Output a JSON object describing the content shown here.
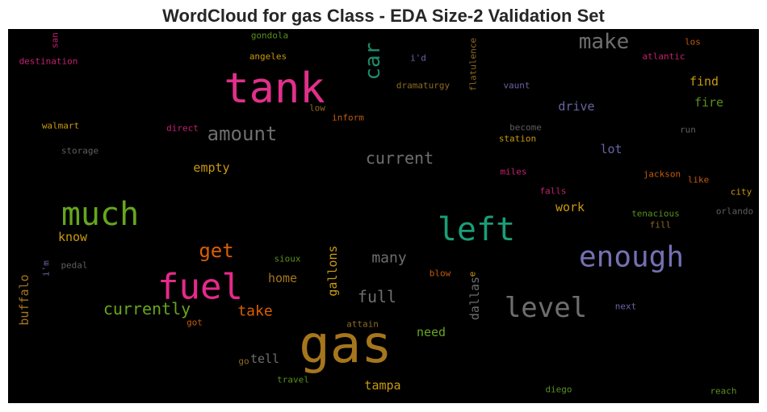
{
  "chart_data": {
    "type": "wordcloud",
    "title": "WordCloud for gas Class - EDA Size-2 Validation Set",
    "background": "#000000",
    "words": [
      {
        "text": "san",
        "color": "#c2226f"
      },
      {
        "text": "destination",
        "color": "#c2226f"
      },
      {
        "text": "gondola",
        "color": "#5a8f1e"
      },
      {
        "text": "angeles",
        "color": "#c99a0e"
      },
      {
        "text": "flatulence",
        "color": "#8f6a22"
      },
      {
        "text": "make",
        "color": "#6e6e6e"
      },
      {
        "text": "los",
        "color": "#c25a0c"
      },
      {
        "text": "atlantic",
        "color": "#c2226f"
      },
      {
        "text": "i'd",
        "color": "#6964a3"
      },
      {
        "text": "car",
        "color": "#1e8c6a"
      },
      {
        "text": "tank",
        "color": "#e0308a"
      },
      {
        "text": "dramaturgy",
        "color": "#8f6a22"
      },
      {
        "text": "vaunt",
        "color": "#6964a3"
      },
      {
        "text": "find",
        "color": "#c99a0e"
      },
      {
        "text": "fire",
        "color": "#5a8f1e"
      },
      {
        "text": "low",
        "color": "#8f6a22"
      },
      {
        "text": "drive",
        "color": "#6964a3"
      },
      {
        "text": "inform",
        "color": "#c25a0c"
      },
      {
        "text": "walmart",
        "color": "#c99a0e"
      },
      {
        "text": "direct",
        "color": "#c2226f"
      },
      {
        "text": "amount",
        "color": "#6e6e6e"
      },
      {
        "text": "become",
        "color": "#5e5e5e"
      },
      {
        "text": "run",
        "color": "#5e5e5e"
      },
      {
        "text": "station",
        "color": "#c99a0e"
      },
      {
        "text": "storage",
        "color": "#5e5e5e"
      },
      {
        "text": "lot",
        "color": "#6964a3"
      },
      {
        "text": "current",
        "color": "#6e6e6e"
      },
      {
        "text": "empty",
        "color": "#c99a0e"
      },
      {
        "text": "miles",
        "color": "#c2226f"
      },
      {
        "text": "jackson",
        "color": "#c25a0c"
      },
      {
        "text": "like",
        "color": "#c25a0c"
      },
      {
        "text": "falls",
        "color": "#c2226f"
      },
      {
        "text": "city",
        "color": "#c99a0e"
      },
      {
        "text": "much",
        "color": "#66a61e"
      },
      {
        "text": "left",
        "color": "#1b9e77"
      },
      {
        "text": "work",
        "color": "#c99a0e"
      },
      {
        "text": "tenacious",
        "color": "#5a8f1e"
      },
      {
        "text": "orlando",
        "color": "#5e5e5e"
      },
      {
        "text": "fill",
        "color": "#8f6a22"
      },
      {
        "text": "know",
        "color": "#c99a0e"
      },
      {
        "text": "get",
        "color": "#d95f02"
      },
      {
        "text": "gallons",
        "color": "#c99a0e"
      },
      {
        "text": "many",
        "color": "#6e6e6e"
      },
      {
        "text": "sioux",
        "color": "#5a8f1e"
      },
      {
        "text": "enough",
        "color": "#7570b3"
      },
      {
        "text": "i'm",
        "color": "#6964a3"
      },
      {
        "text": "pedal",
        "color": "#5e5e5e"
      },
      {
        "text": "blow",
        "color": "#c25a0c"
      },
      {
        "text": "e",
        "color": "#c99a0e"
      },
      {
        "text": "dallas",
        "color": "#6e6e6e"
      },
      {
        "text": "fuel",
        "color": "#e7298a"
      },
      {
        "text": "home",
        "color": "#a6761d"
      },
      {
        "text": "full",
        "color": "#6e6e6e"
      },
      {
        "text": "buffalo",
        "color": "#a6761d"
      },
      {
        "text": "currently",
        "color": "#66a61e"
      },
      {
        "text": "take",
        "color": "#d95f02"
      },
      {
        "text": "level",
        "color": "#6e6e6e"
      },
      {
        "text": "next",
        "color": "#6964a3"
      },
      {
        "text": "got",
        "color": "#c25a0c"
      },
      {
        "text": "attain",
        "color": "#8f6a22"
      },
      {
        "text": "gas",
        "color": "#a6761d"
      },
      {
        "text": "need",
        "color": "#66a61e"
      },
      {
        "text": "tell",
        "color": "#6e6e6e"
      },
      {
        "text": "go",
        "color": "#8f6a22"
      },
      {
        "text": "travel",
        "color": "#5a8f1e"
      },
      {
        "text": "tampa",
        "color": "#c99a0e"
      },
      {
        "text": "diego",
        "color": "#5a8f1e"
      },
      {
        "text": "reach",
        "color": "#5a8f1e"
      }
    ]
  }
}
